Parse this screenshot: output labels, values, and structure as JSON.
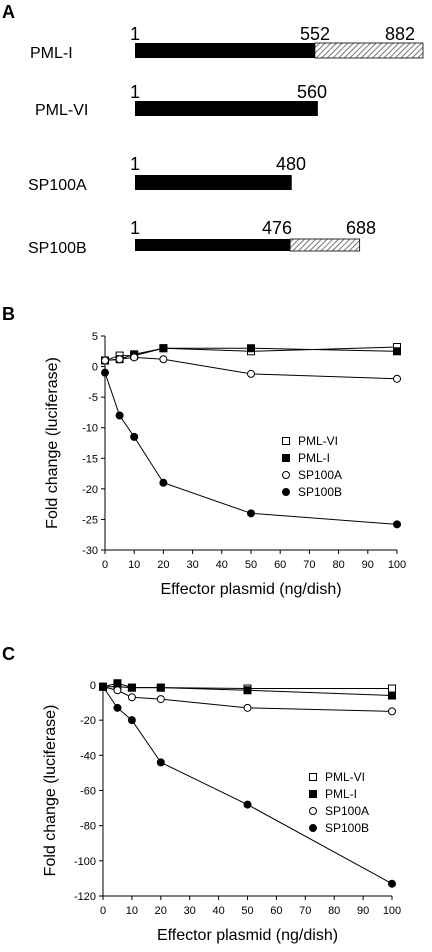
{
  "panel_a": {
    "label": "A",
    "constructs": [
      {
        "name": "PML-I",
        "start": 1,
        "solid_end": 552,
        "end": 882,
        "labels": [
          "1",
          "552",
          "882"
        ]
      },
      {
        "name": "PML-VI",
        "start": 1,
        "solid_end": 560,
        "end": 560,
        "labels": [
          "1",
          "560"
        ]
      },
      {
        "name": "SP100A",
        "start": 1,
        "solid_end": 480,
        "end": 480,
        "labels": [
          "1",
          "480"
        ]
      },
      {
        "name": "SP100B",
        "start": 1,
        "solid_end": 476,
        "end": 688,
        "labels": [
          "1",
          "476",
          "688"
        ]
      }
    ]
  },
  "chart_data": [
    {
      "panel": "B",
      "type": "line",
      "xlabel": "Effector plasmid (ng/dish)",
      "ylabel": "Fold change (luciferase)",
      "xlim": [
        0,
        100
      ],
      "ylim": [
        -30,
        5
      ],
      "xticks": [
        0,
        10,
        20,
        30,
        40,
        50,
        60,
        70,
        80,
        90,
        100
      ],
      "yticks": [
        5,
        0,
        -5,
        -10,
        -15,
        -20,
        -25,
        -30
      ],
      "legend_position": "right",
      "x": [
        0,
        5,
        10,
        20,
        50,
        100
      ],
      "series": [
        {
          "name": "PML-VI",
          "marker": "open-square",
          "values": [
            1,
            1.8,
            1.8,
            3,
            2.5,
            3.2
          ]
        },
        {
          "name": "PML-I",
          "marker": "filled-square",
          "values": [
            1,
            1.2,
            2,
            3,
            3,
            2.5
          ]
        },
        {
          "name": "SP100A",
          "marker": "open-circle",
          "values": [
            1,
            1.2,
            1.5,
            1.2,
            -1.2,
            -2
          ]
        },
        {
          "name": "SP100B",
          "marker": "filled-circle",
          "values": [
            -1,
            -8,
            -11.5,
            -19,
            -24,
            -25.8
          ]
        }
      ]
    },
    {
      "panel": "C",
      "type": "line",
      "xlabel": "Effector plasmid  (ng/dish)",
      "ylabel": "Fold change (luciferase)",
      "xlim": [
        0,
        100
      ],
      "ylim": [
        -120,
        0
      ],
      "xticks": [
        0,
        10,
        20,
        30,
        40,
        50,
        60,
        70,
        80,
        90,
        100
      ],
      "yticks": [
        0,
        -20,
        -40,
        -60,
        -80,
        -100,
        -120
      ],
      "legend_position": "right",
      "x": [
        0,
        5,
        10,
        20,
        50,
        100
      ],
      "series": [
        {
          "name": "PML-VI",
          "marker": "open-square",
          "values": [
            -1,
            -1,
            -1.5,
            -1.5,
            -2,
            -2
          ]
        },
        {
          "name": "PML-I",
          "marker": "filled-square",
          "values": [
            -1,
            1,
            -1.5,
            -1.5,
            -3,
            -6
          ]
        },
        {
          "name": "SP100A",
          "marker": "open-circle",
          "values": [
            -1,
            -3,
            -7,
            -8,
            -13,
            -15
          ]
        },
        {
          "name": "SP100B",
          "marker": "filled-circle",
          "values": [
            -1,
            -13,
            -20,
            -44,
            -68,
            -113
          ]
        }
      ]
    }
  ]
}
